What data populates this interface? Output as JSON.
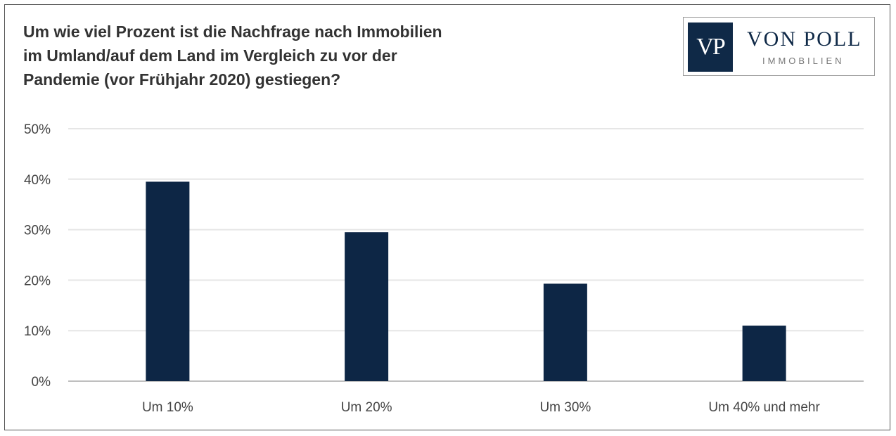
{
  "title_lines": [
    "Um wie viel Prozent ist die Nachfrage nach Immobilien",
    "im Umland/auf dem Land im Vergleich zu vor der",
    "Pandemie (vor Frühjahr 2020) gestiegen?"
  ],
  "logo": {
    "mark": "VP",
    "name": "VON POLL",
    "sub": "IMMOBILIEN"
  },
  "colors": {
    "bar": "#0d2645",
    "grid": "#e6e6e6",
    "axis": "#bfbfbf"
  },
  "chart_data": {
    "type": "bar",
    "title": "Um wie viel Prozent ist die Nachfrage nach Immobilien im Umland/auf dem Land im Vergleich zu vor der Pandemie (vor Frühjahr 2020) gestiegen?",
    "categories": [
      "Um 10%",
      "Um 20%",
      "Um 30%",
      "Um 40% und mehr"
    ],
    "values": [
      39.5,
      29.5,
      19.3,
      11.0
    ],
    "yticks": [
      "0%",
      "10%",
      "20%",
      "30%",
      "40%",
      "50%"
    ],
    "ylim": [
      0,
      50
    ],
    "grid": true,
    "legend": "none"
  }
}
